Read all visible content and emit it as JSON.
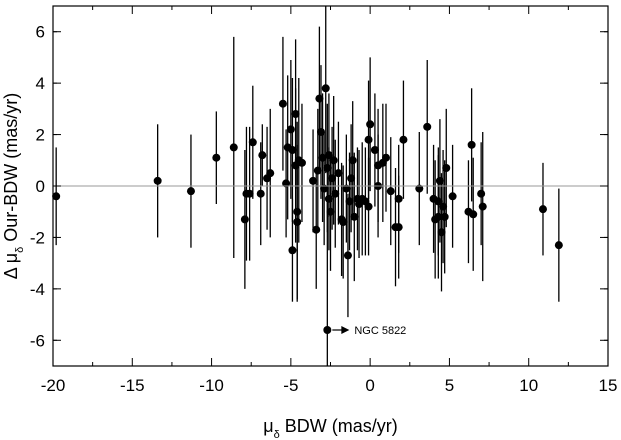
{
  "chart_data": {
    "type": "scatter",
    "xlabel_main": "μ",
    "xlabel_sub": "δ",
    "xlabel_rest": " BDW (mas/yr)",
    "ylabel_prefix": "Δ μ",
    "ylabel_sub": "δ",
    "ylabel_rest": " Our-BDW (mas/yr)",
    "xlim": [
      -20,
      15
    ],
    "ylim": [
      -7,
      7
    ],
    "xticks": [
      -20,
      -15,
      -10,
      -5,
      0,
      5,
      10,
      15
    ],
    "yticks": [
      -6,
      -4,
      -2,
      0,
      2,
      4,
      6
    ],
    "zero_line": true,
    "grid": false,
    "annotation": {
      "text": "NGC 5822",
      "x": -2.7,
      "y": -5.6
    },
    "points": [
      {
        "x": -19.8,
        "y": -0.4,
        "err": 1.9
      },
      {
        "x": -13.4,
        "y": 0.2,
        "err": 2.2
      },
      {
        "x": -11.3,
        "y": -0.2,
        "err": 2.2
      },
      {
        "x": -9.7,
        "y": 1.1,
        "err": 1.8
      },
      {
        "x": -8.6,
        "y": 1.5,
        "err": 4.3
      },
      {
        "x": -7.9,
        "y": -1.3,
        "err": 2.7
      },
      {
        "x": -7.8,
        "y": -0.3,
        "err": 2.6
      },
      {
        "x": -7.6,
        "y": -0.3,
        "err": 2.6
      },
      {
        "x": -7.4,
        "y": 1.7,
        "err": 2.2
      },
      {
        "x": -6.9,
        "y": -0.3,
        "err": 2.0
      },
      {
        "x": -6.8,
        "y": 1.2,
        "err": 1.2
      },
      {
        "x": -6.5,
        "y": 0.3,
        "err": 2.0
      },
      {
        "x": -6.3,
        "y": 0.5,
        "err": 2.5
      },
      {
        "x": -5.5,
        "y": 3.2,
        "err": 2.6
      },
      {
        "x": -5.3,
        "y": 0.1,
        "err": 2.1
      },
      {
        "x": -5.2,
        "y": 1.5,
        "err": 2.8
      },
      {
        "x": -5.0,
        "y": 2.2,
        "err": 2.7
      },
      {
        "x": -4.9,
        "y": 1.4,
        "err": 2.8
      },
      {
        "x": -4.9,
        "y": -2.5,
        "err": 2.0
      },
      {
        "x": -4.7,
        "y": 2.8,
        "err": 2.9
      },
      {
        "x": -4.7,
        "y": 0.8,
        "err": 3.0
      },
      {
        "x": -4.6,
        "y": -1.0,
        "err": 3.5
      },
      {
        "x": -4.5,
        "y": 1.0,
        "err": 3.2
      },
      {
        "x": -4.6,
        "y": -1.4,
        "err": 3.0
      },
      {
        "x": -4.3,
        "y": 0.9,
        "err": 2.3
      },
      {
        "x": -3.6,
        "y": 0.2,
        "err": 2.0
      },
      {
        "x": -3.4,
        "y": -1.7,
        "err": 2.3
      },
      {
        "x": -3.3,
        "y": 0.6,
        "err": 2.4
      },
      {
        "x": -3.2,
        "y": 3.4,
        "err": 2.8
      },
      {
        "x": -3.1,
        "y": 2.1,
        "err": 2.6
      },
      {
        "x": -3.0,
        "y": 1.1,
        "err": 2.5
      },
      {
        "x": -2.9,
        "y": -0.1,
        "err": 2.2
      },
      {
        "x": -2.8,
        "y": 3.8,
        "err": 3.3
      },
      {
        "x": -2.7,
        "y": 0.7,
        "err": 2.5
      },
      {
        "x": -2.6,
        "y": -0.5,
        "err": 2.0
      },
      {
        "x": -2.6,
        "y": 1.2,
        "err": 2.4
      },
      {
        "x": -2.5,
        "y": -1.0,
        "err": 2.3
      },
      {
        "x": -2.4,
        "y": 0.3,
        "err": 2.0
      },
      {
        "x": -2.3,
        "y": 1.0,
        "err": 2.5
      },
      {
        "x": -2.2,
        "y": -0.3,
        "err": 2.1
      },
      {
        "x": -2.0,
        "y": 0.5,
        "err": 2.0
      },
      {
        "x": -1.8,
        "y": -1.3,
        "err": 2.2
      },
      {
        "x": -1.7,
        "y": -1.4,
        "err": 2.2
      },
      {
        "x": -1.5,
        "y": -0.1,
        "err": 2.1
      },
      {
        "x": -1.4,
        "y": -2.7,
        "err": 2.4
      },
      {
        "x": -1.3,
        "y": -0.6,
        "err": 1.9
      },
      {
        "x": -1.2,
        "y": 0.3,
        "err": 2.1
      },
      {
        "x": -1.1,
        "y": 1.0,
        "err": 2.3
      },
      {
        "x": -1.0,
        "y": -1.2,
        "err": 2.5
      },
      {
        "x": -0.8,
        "y": -0.5,
        "err": 2.0
      },
      {
        "x": -0.7,
        "y": -0.7,
        "err": 2.1
      },
      {
        "x": -0.5,
        "y": -0.5,
        "err": 2.2
      },
      {
        "x": -0.3,
        "y": -0.6,
        "err": 2.1
      },
      {
        "x": -0.1,
        "y": -0.8,
        "err": 1.9
      },
      {
        "x": -0.1,
        "y": 1.8,
        "err": 2.3
      },
      {
        "x": 0.0,
        "y": 2.4,
        "err": 2.6
      },
      {
        "x": 0.3,
        "y": 1.4,
        "err": 2.2
      },
      {
        "x": 0.5,
        "y": 0.0,
        "err": 2.0
      },
      {
        "x": 0.5,
        "y": 0.8,
        "err": 2.2
      },
      {
        "x": 0.8,
        "y": 0.9,
        "err": 2.3
      },
      {
        "x": 1.0,
        "y": 1.1,
        "err": 2.1
      },
      {
        "x": 1.3,
        "y": -0.2,
        "err": 2.1
      },
      {
        "x": 1.6,
        "y": -1.6,
        "err": 2.3
      },
      {
        "x": 1.8,
        "y": -1.6,
        "err": 2.0
      },
      {
        "x": 1.8,
        "y": -0.5,
        "err": 2.1
      },
      {
        "x": 2.1,
        "y": 1.8,
        "err": 2.3
      },
      {
        "x": 3.1,
        "y": -0.1,
        "err": 2.2
      },
      {
        "x": 3.6,
        "y": 2.3,
        "err": 2.6
      },
      {
        "x": 4.0,
        "y": -0.5,
        "err": 2.1
      },
      {
        "x": 4.1,
        "y": -1.3,
        "err": 2.3
      },
      {
        "x": 4.3,
        "y": -1.2,
        "err": 2.4
      },
      {
        "x": 4.3,
        "y": -0.6,
        "err": 2.1
      },
      {
        "x": 4.4,
        "y": 0.2,
        "err": 2.4
      },
      {
        "x": 4.5,
        "y": -1.8,
        "err": 2.3
      },
      {
        "x": 4.6,
        "y": -0.8,
        "err": 2.2
      },
      {
        "x": 4.7,
        "y": -1.2,
        "err": 2.2
      },
      {
        "x": 4.8,
        "y": 0.7,
        "err": 2.3
      },
      {
        "x": 5.2,
        "y": -0.4,
        "err": 2.0
      },
      {
        "x": 6.2,
        "y": -1.0,
        "err": 2.0
      },
      {
        "x": 6.4,
        "y": 1.6,
        "err": 2.2
      },
      {
        "x": 6.5,
        "y": -1.1,
        "err": 2.2
      },
      {
        "x": 7.0,
        "y": -0.3,
        "err": 2.0
      },
      {
        "x": 7.1,
        "y": -0.8,
        "err": 2.9
      },
      {
        "x": 10.9,
        "y": -0.9,
        "err": 1.8
      },
      {
        "x": 11.9,
        "y": -2.3,
        "err": 2.2
      },
      {
        "x": -2.7,
        "y": -5.6,
        "err": 5.6
      }
    ]
  }
}
